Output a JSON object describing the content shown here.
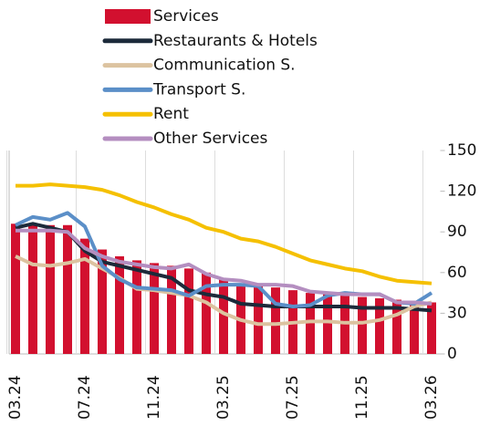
{
  "chart_data": {
    "type": "bar-line",
    "categories": [
      "03.24",
      null,
      null,
      null,
      "07.24",
      null,
      null,
      null,
      "11.24",
      null,
      null,
      null,
      "03.25",
      null,
      null,
      null,
      "07.25",
      null,
      null,
      null,
      "11.25",
      null,
      null,
      null,
      "03.26"
    ],
    "series": [
      {
        "name": "Services",
        "type": "bar",
        "color": "#d2102f",
        "values": [
          96,
          95,
          95,
          95,
          85,
          77,
          72,
          69,
          67,
          65,
          63,
          60,
          55,
          52,
          50,
          49,
          47,
          45,
          44,
          43,
          42,
          41,
          40,
          39,
          38
        ]
      },
      {
        "name": "Restaurants & Hotels",
        "type": "line",
        "color": "#1c2a3a",
        "values": [
          93,
          96,
          93,
          90,
          76,
          68,
          65,
          62,
          59,
          56,
          47,
          44,
          42,
          37,
          36,
          35,
          35,
          35,
          35,
          35,
          34,
          34,
          34,
          33,
          32
        ]
      },
      {
        "name": "Communication S.",
        "type": "line",
        "color": "#dcc3a0",
        "values": [
          72,
          66,
          65,
          67,
          70,
          63,
          56,
          48,
          47,
          45,
          43,
          38,
          30,
          25,
          22,
          22,
          23,
          24,
          24,
          23,
          23,
          25,
          29,
          35,
          38
        ]
      },
      {
        "name": "Transport S.",
        "type": "line",
        "color": "#5b8fc8",
        "values": [
          95,
          101,
          99,
          104,
          94,
          65,
          55,
          49,
          48,
          47,
          43,
          50,
          51,
          51,
          50,
          37,
          35,
          36,
          43,
          45,
          44,
          44,
          38,
          37,
          45
        ]
      },
      {
        "name": "Rent",
        "type": "line",
        "color": "#f5c000",
        "values": [
          124,
          124,
          125,
          124,
          123,
          121,
          117,
          112,
          108,
          103,
          99,
          93,
          90,
          85,
          83,
          79,
          74,
          69,
          66,
          63,
          61,
          57,
          54,
          53,
          52
        ]
      },
      {
        "name": "Other Services",
        "type": "line",
        "color": "#b48ec0",
        "values": [
          91,
          91,
          91,
          90,
          78,
          72,
          68,
          66,
          64,
          63,
          66,
          59,
          55,
          54,
          51,
          51,
          50,
          46,
          45,
          44,
          44,
          44,
          38,
          38,
          37
        ]
      }
    ],
    "ylim": [
      0,
      150
    ],
    "yticks": [
      0,
      30,
      60,
      90,
      120,
      150
    ],
    "y_axis_side": "right",
    "legend": "top"
  }
}
